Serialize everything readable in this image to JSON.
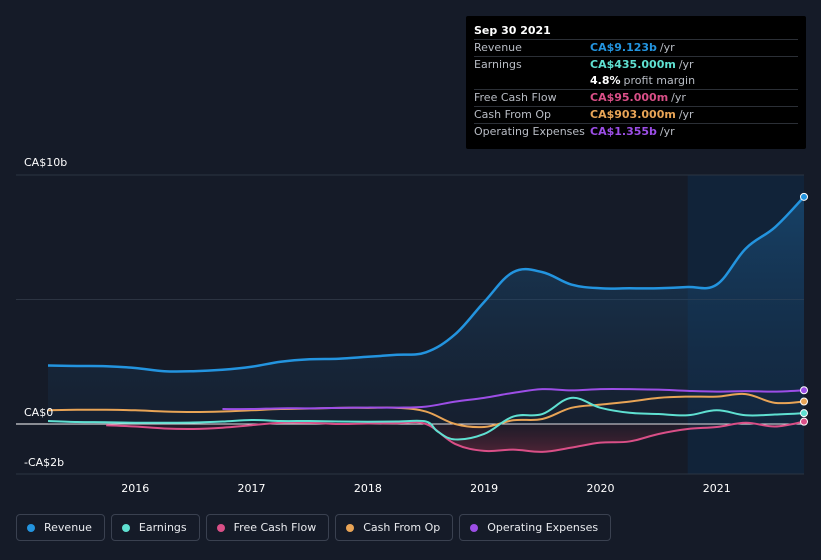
{
  "tooltip": {
    "date": "Sep 30 2021",
    "rows": [
      {
        "label": "Revenue",
        "value": "CA$9.123b",
        "unit": "/yr",
        "color": "#2394df"
      },
      {
        "label": "Earnings",
        "value": "CA$435.000m",
        "unit": "/yr",
        "color": "#5fe0d1"
      },
      {
        "margin_value": "4.8%",
        "margin_text": "profit margin"
      },
      {
        "label": "Free Cash Flow",
        "value": "CA$95.000m",
        "unit": "/yr",
        "color": "#d94f87"
      },
      {
        "label": "Cash From Op",
        "value": "CA$903.000m",
        "unit": "/yr",
        "color": "#e8a456"
      },
      {
        "label": "Operating Expenses",
        "value": "CA$1.355b",
        "unit": "/yr",
        "color": "#9c4ee6"
      }
    ]
  },
  "legend": [
    {
      "label": "Revenue",
      "color": "#2394df"
    },
    {
      "label": "Earnings",
      "color": "#5fe0d1"
    },
    {
      "label": "Free Cash Flow",
      "color": "#d94f87"
    },
    {
      "label": "Cash From Op",
      "color": "#e8a456"
    },
    {
      "label": "Operating Expenses",
      "color": "#9c4ee6"
    }
  ],
  "chart_data": {
    "type": "line",
    "y_tick_labels": [
      "CA$10b",
      "CA$0",
      "-CA$2b"
    ],
    "ylim": [
      -2,
      10
    ],
    "xlim": [
      2015.25,
      2021.75
    ],
    "x_tick_labels": [
      "2016",
      "2017",
      "2018",
      "2019",
      "2020",
      "2021"
    ],
    "x_ticks": [
      2016,
      2017,
      2018,
      2019,
      2020,
      2021
    ],
    "highlight_from": 2020.75,
    "series": [
      {
        "name": "Revenue",
        "color": "#2394df",
        "area": true,
        "x": [
          2015.25,
          2015.5,
          2015.75,
          2016.0,
          2016.25,
          2016.5,
          2016.75,
          2017.0,
          2017.25,
          2017.5,
          2017.75,
          2018.0,
          2018.25,
          2018.5,
          2018.75,
          2019.0,
          2019.25,
          2019.5,
          2019.75,
          2020.0,
          2020.25,
          2020.5,
          2020.75,
          2021.0,
          2021.25,
          2021.5,
          2021.75
        ],
        "y": [
          2.35,
          2.33,
          2.32,
          2.25,
          2.12,
          2.12,
          2.18,
          2.3,
          2.5,
          2.6,
          2.62,
          2.7,
          2.78,
          2.88,
          3.6,
          4.9,
          6.1,
          6.1,
          5.6,
          5.45,
          5.45,
          5.45,
          5.5,
          5.6,
          7.05,
          7.9,
          9.123
        ]
      },
      {
        "name": "Earnings",
        "color": "#5fe0d1",
        "area": false,
        "x": [
          2015.25,
          2015.5,
          2015.75,
          2016.0,
          2016.25,
          2016.5,
          2016.75,
          2017.0,
          2017.25,
          2017.5,
          2017.75,
          2018.0,
          2018.25,
          2018.5,
          2018.6,
          2018.75,
          2019.0,
          2019.25,
          2019.5,
          2019.75,
          2020.0,
          2020.25,
          2020.5,
          2020.75,
          2021.0,
          2021.25,
          2021.5,
          2021.75
        ],
        "y": [
          0.12,
          0.08,
          0.07,
          0.05,
          0.05,
          0.06,
          0.1,
          0.16,
          0.12,
          0.12,
          0.1,
          0.09,
          0.1,
          0.1,
          -0.3,
          -0.62,
          -0.4,
          0.3,
          0.4,
          1.05,
          0.65,
          0.45,
          0.4,
          0.35,
          0.55,
          0.35,
          0.38,
          0.435
        ]
      },
      {
        "name": "Free Cash Flow",
        "color": "#d94f87",
        "area": true,
        "x": [
          2015.75,
          2016.0,
          2016.25,
          2016.5,
          2016.75,
          2017.0,
          2017.25,
          2017.5,
          2017.75,
          2018.0,
          2018.25,
          2018.5,
          2018.75,
          2019.0,
          2019.25,
          2019.5,
          2019.75,
          2020.0,
          2020.25,
          2020.5,
          2020.75,
          2021.0,
          2021.25,
          2021.5,
          2021.75
        ],
        "y": [
          -0.05,
          -0.1,
          -0.18,
          -0.2,
          -0.15,
          -0.05,
          0.05,
          0.05,
          0.0,
          0.02,
          0.03,
          0.0,
          -0.8,
          -1.08,
          -1.03,
          -1.12,
          -0.95,
          -0.75,
          -0.7,
          -0.4,
          -0.2,
          -0.12,
          0.05,
          -0.1,
          0.095
        ]
      },
      {
        "name": "Cash From Op",
        "color": "#e8a456",
        "area": false,
        "x": [
          2015.25,
          2015.5,
          2015.75,
          2016.0,
          2016.25,
          2016.5,
          2016.75,
          2017.0,
          2017.25,
          2017.5,
          2017.75,
          2018.0,
          2018.25,
          2018.5,
          2018.75,
          2019.0,
          2019.25,
          2019.5,
          2019.75,
          2020.0,
          2020.25,
          2020.5,
          2020.75,
          2021.0,
          2021.25,
          2021.5,
          2021.75
        ],
        "y": [
          0.55,
          0.57,
          0.57,
          0.55,
          0.5,
          0.48,
          0.5,
          0.55,
          0.6,
          0.62,
          0.65,
          0.65,
          0.65,
          0.5,
          0.0,
          -0.12,
          0.15,
          0.2,
          0.65,
          0.78,
          0.9,
          1.05,
          1.1,
          1.1,
          1.2,
          0.85,
          0.903
        ]
      },
      {
        "name": "Operating Expenses",
        "color": "#9c4ee6",
        "area": false,
        "x": [
          2016.75,
          2017.0,
          2017.25,
          2017.5,
          2017.75,
          2018.0,
          2018.25,
          2018.5,
          2018.75,
          2019.0,
          2019.25,
          2019.5,
          2019.75,
          2020.0,
          2020.25,
          2020.5,
          2020.75,
          2021.0,
          2021.25,
          2021.5,
          2021.75
        ],
        "y": [
          0.6,
          0.6,
          0.63,
          0.63,
          0.65,
          0.66,
          0.66,
          0.7,
          0.9,
          1.05,
          1.25,
          1.4,
          1.35,
          1.4,
          1.4,
          1.38,
          1.33,
          1.3,
          1.32,
          1.3,
          1.355
        ]
      }
    ]
  }
}
